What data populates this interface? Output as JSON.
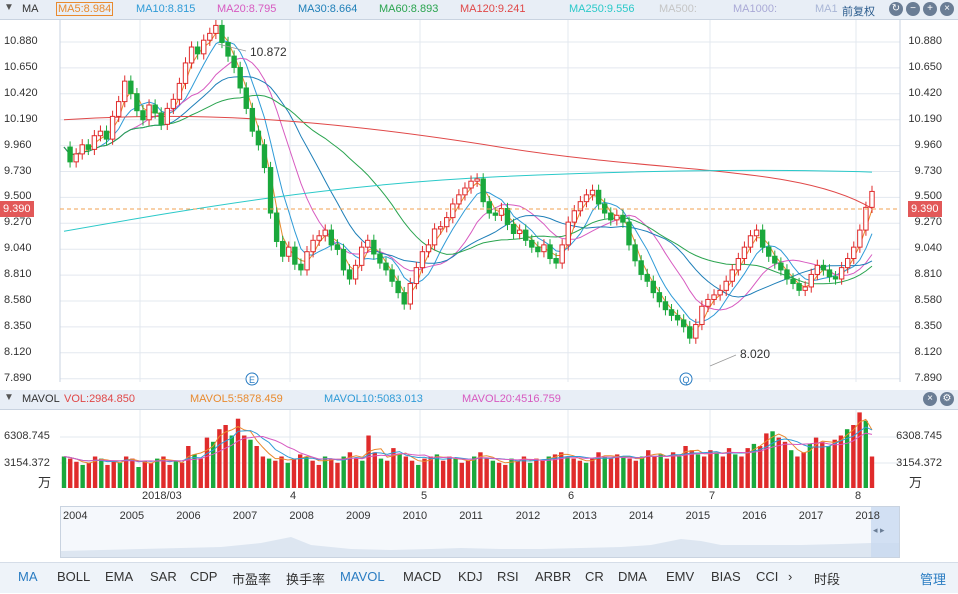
{
  "ma_header": {
    "title": "MA",
    "items": [
      {
        "label": "MA5:",
        "value": "8.984",
        "color": "#e98a2e"
      },
      {
        "label": "MA10:",
        "value": "8.815",
        "color": "#2f9bd7"
      },
      {
        "label": "MA20:",
        "value": "8.795",
        "color": "#d75ac0"
      },
      {
        "label": "MA30:",
        "value": "8.664",
        "color": "#1e7fb8"
      },
      {
        "label": "MA60:",
        "value": "8.893",
        "color": "#2aa44f"
      },
      {
        "label": "MA120:",
        "value": "9.241",
        "color": "#e04848"
      },
      {
        "label": "MA250:",
        "value": "9.556",
        "color": "#2bc9c9"
      },
      {
        "label": "MA500:",
        "value": "",
        "color": "#c5c5c5"
      },
      {
        "label": "MA1000:",
        "value": "",
        "color": "#a9a9d6"
      },
      {
        "label": "MA1",
        "value": "",
        "color": "#a9b6d6"
      }
    ],
    "adjust_label": "前复权"
  },
  "price_axis": [
    "10.880",
    "10.650",
    "10.420",
    "10.190",
    "9.960",
    "9.730",
    "9.500",
    "9.270",
    "9.040",
    "8.810",
    "8.580",
    "8.350",
    "8.120",
    "7.890"
  ],
  "current_price": "9.390",
  "annotations": {
    "high": "10.872",
    "low": "8.020",
    "event_e": "E",
    "event_q": "Q"
  },
  "vol_header": {
    "title": "MAVOL",
    "items": [
      {
        "label": "VOL:",
        "value": "2984.850",
        "color": "#e04848"
      },
      {
        "label": "MAVOL5:",
        "value": "5878.459",
        "color": "#e98a2e"
      },
      {
        "label": "MAVOL10:",
        "value": "5083.013",
        "color": "#2f9bd7"
      },
      {
        "label": "MAVOL20:",
        "value": "4516.759",
        "color": "#d75ac0"
      }
    ]
  },
  "vol_axis": [
    "6308.745",
    "3154.372",
    "万"
  ],
  "date_axis": [
    "2018/03",
    "4",
    "5",
    "6",
    "7",
    "8"
  ],
  "nav_years": [
    "2004",
    "2005",
    "2006",
    "2007",
    "2008",
    "2009",
    "2010",
    "2011",
    "2012",
    "2013",
    "2014",
    "2015",
    "2016",
    "2017",
    "2018"
  ],
  "tabs": [
    "MA",
    "BOLL",
    "EMA",
    "SAR",
    "CDP",
    "市盈率",
    "换手率",
    "MAVOL",
    "MACD",
    "KDJ",
    "RSI",
    "ARBR",
    "CR",
    "DMA",
    "EMV",
    "BIAS",
    "CCI"
  ],
  "active_tabs": [
    "MA",
    "MAVOL"
  ],
  "tab_more": "›",
  "period_label": "时段",
  "manage_label": "管理",
  "colors": {
    "up": "#e02b2b",
    "down": "#1aa83c",
    "grid": "#e3e8ef",
    "accent": "#2a7cc2"
  }
}
